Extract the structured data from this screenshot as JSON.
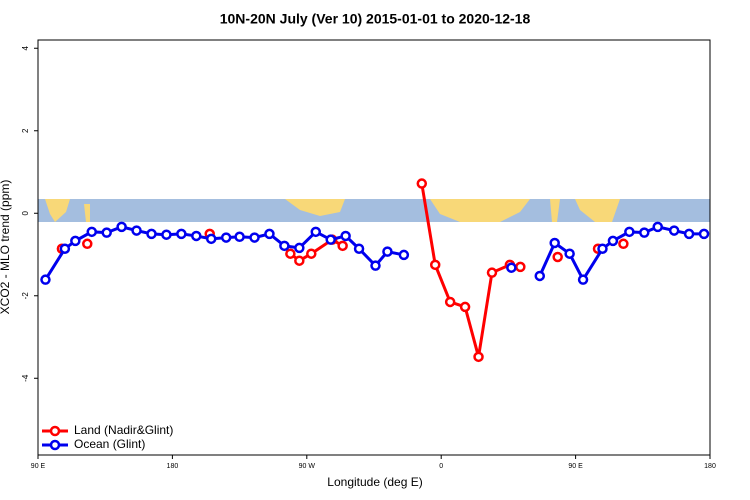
{
  "chart_data": {
    "type": "line",
    "title": "10N-20N July (Ver 10)   2015-01-01 to 2020-12-18",
    "x_label": "Longitude (deg E)",
    "y_label": "XCO2 - MLO trend (ppm)",
    "xlim": [
      90,
      540
    ],
    "xticks": [
      {
        "value": 90,
        "label": "90 E"
      },
      180,
      {
        "value": 270,
        "label": "90 W"
      },
      {
        "value": 360,
        "label": "0"
      },
      {
        "value": 450,
        "label": "90 E"
      },
      {
        "value": 540,
        "label": "180"
      }
    ],
    "ylim": [
      -5.86,
      4.2
    ],
    "yticks": [
      -4,
      -2,
      0,
      2,
      4
    ],
    "legend": "bottom-left",
    "series": [
      {
        "name": "Land (Nadir&Glint)",
        "color": "#ff0000",
        "x": [
          106,
          null,
          123,
          null,
          205,
          null,
          259,
          265,
          273,
          287,
          294,
          null,
          347,
          356,
          366,
          376,
          385,
          394,
          406,
          413,
          null,
          438,
          null,
          465,
          null,
          482
        ],
        "values": [
          -0.86,
          null,
          -0.74,
          null,
          -0.5,
          null,
          -0.98,
          -1.15,
          -0.98,
          -0.64,
          -0.79,
          null,
          0.72,
          -1.25,
          -2.15,
          -2.27,
          -3.48,
          -1.44,
          -1.25,
          -1.3,
          null,
          -1.06,
          null,
          -0.86,
          null,
          -0.74
        ]
      },
      {
        "name": "Ocean (Glint)",
        "color": "#0000ee",
        "x": [
          95,
          108,
          115,
          126,
          136,
          146,
          156,
          166,
          176,
          186,
          196,
          206,
          216,
          225,
          235,
          245,
          255,
          265,
          276,
          286,
          296,
          305,
          316,
          324,
          335,
          null,
          407,
          null,
          426,
          436,
          446,
          455,
          468,
          475,
          486,
          496,
          505,
          516,
          526,
          536
        ],
        "values": [
          -1.61,
          -0.86,
          -0.67,
          -0.45,
          -0.47,
          -0.33,
          -0.42,
          -0.5,
          -0.52,
          -0.5,
          -0.55,
          -0.62,
          -0.59,
          -0.57,
          -0.59,
          -0.5,
          -0.79,
          -0.84,
          -0.45,
          -0.64,
          -0.55,
          -0.86,
          -1.27,
          -0.93,
          -1.01,
          null,
          -1.32,
          null,
          -1.52,
          -0.72,
          -0.98,
          -1.61,
          -0.86,
          -0.67,
          -0.45,
          -0.47,
          -0.33,
          -0.42,
          -0.5,
          -0.5
        ]
      }
    ]
  }
}
